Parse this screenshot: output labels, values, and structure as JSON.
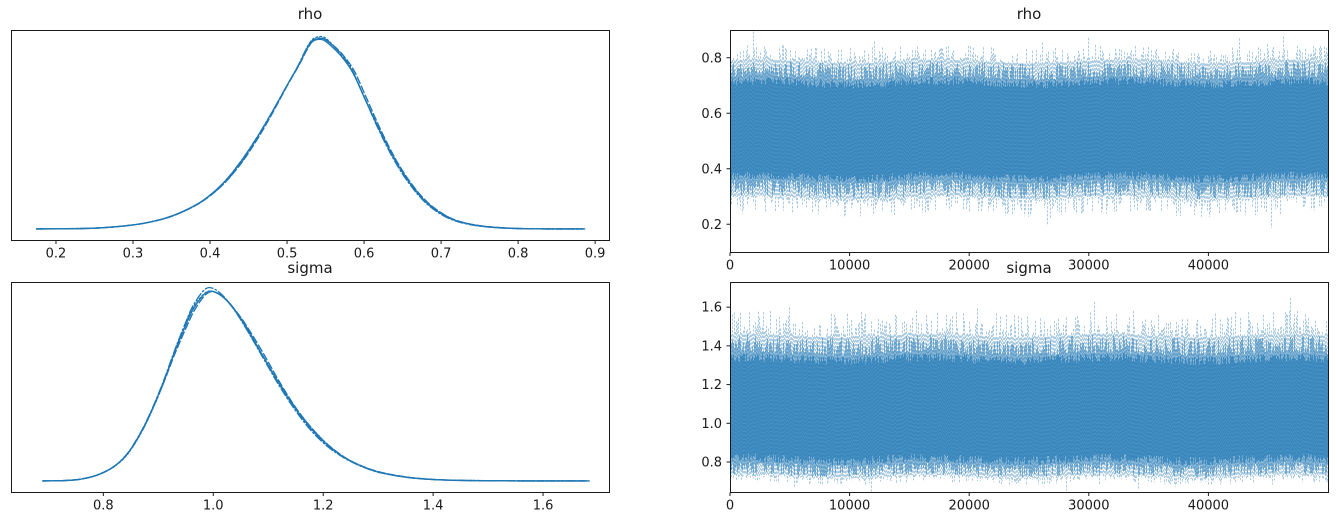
{
  "figure": {
    "kind": "mcmc-trace-plot",
    "background": "#ffffff",
    "accent": "#1f77b4",
    "parameters": [
      "rho",
      "sigma"
    ]
  },
  "chart_data": [
    {
      "id": "rho-kde",
      "type": "line",
      "subtype": "kde",
      "title": "rho",
      "param": "rho",
      "xlabel": "",
      "ylabel": "",
      "xlim": [
        0.1416,
        0.918
      ],
      "xticks": [
        0.2,
        0.3,
        0.4,
        0.5,
        0.6,
        0.7,
        0.8,
        0.9
      ],
      "xtick_format": "1dp",
      "grid": false,
      "legend": "none",
      "n_chains": 4,
      "line_color": "#1f77b4",
      "linestyles": [
        "solid",
        "dashed",
        "dashdot",
        "dotted"
      ],
      "peak_x": 0.533,
      "points": {
        "x": [
          0.175,
          0.21,
          0.25,
          0.29,
          0.32,
          0.35,
          0.38,
          0.4,
          0.42,
          0.44,
          0.46,
          0.48,
          0.5,
          0.515,
          0.525,
          0.533,
          0.545,
          0.555,
          0.57,
          0.585,
          0.6,
          0.62,
          0.64,
          0.66,
          0.68,
          0.7,
          0.72,
          0.745,
          0.77,
          0.8,
          0.84,
          0.885
        ],
        "density": [
          0.008,
          0.009,
          0.012,
          0.024,
          0.042,
          0.075,
          0.13,
          0.185,
          0.26,
          0.36,
          0.48,
          0.615,
          0.76,
          0.865,
          0.945,
          0.99,
          1.0,
          0.975,
          0.915,
          0.83,
          0.7,
          0.525,
          0.37,
          0.245,
          0.15,
          0.088,
          0.05,
          0.027,
          0.016,
          0.01,
          0.008,
          0.008
        ]
      }
    },
    {
      "id": "rho-trace",
      "type": "line",
      "subtype": "trace",
      "title": "rho",
      "param": "rho",
      "xlabel": "",
      "ylabel": "",
      "xlim": [
        0,
        50000
      ],
      "xticks": [
        0,
        10000,
        20000,
        30000,
        40000
      ],
      "xtick_format": "int",
      "ylim": [
        0.1,
        0.9
      ],
      "yticks": [
        0.2,
        0.4,
        0.6,
        0.8
      ],
      "ytick_format": "1dp",
      "grid": false,
      "legend": "none",
      "n_chains": 4,
      "n_samples": 50000,
      "mean": 0.54,
      "band_core": [
        0.355,
        0.725
      ],
      "band_mid": [
        0.295,
        0.785
      ],
      "extremes": [
        0.17,
        0.89
      ],
      "line_color": "#1f77b4",
      "seed": 101
    },
    {
      "id": "sigma-kde",
      "type": "line",
      "subtype": "kde",
      "title": "sigma",
      "param": "sigma",
      "xlabel": "",
      "ylabel": "",
      "xlim": [
        0.632,
        1.72
      ],
      "xticks": [
        0.8,
        1.0,
        1.2,
        1.4,
        1.6
      ],
      "xtick_format": "1dp",
      "grid": false,
      "legend": "none",
      "n_chains": 4,
      "line_color": "#1f77b4",
      "linestyles": [
        "solid",
        "dashed",
        "dashdot",
        "dotted"
      ],
      "peak_x": 0.985,
      "points": {
        "x": [
          0.69,
          0.73,
          0.76,
          0.79,
          0.82,
          0.845,
          0.87,
          0.89,
          0.91,
          0.93,
          0.95,
          0.965,
          0.985,
          1.0,
          1.02,
          1.04,
          1.06,
          1.09,
          1.12,
          1.15,
          1.18,
          1.21,
          1.24,
          1.27,
          1.3,
          1.34,
          1.38,
          1.43,
          1.5,
          1.58,
          1.68
        ],
        "density": [
          0.008,
          0.01,
          0.018,
          0.04,
          0.085,
          0.155,
          0.27,
          0.39,
          0.53,
          0.685,
          0.825,
          0.915,
          0.99,
          1.0,
          0.965,
          0.9,
          0.815,
          0.665,
          0.515,
          0.385,
          0.275,
          0.19,
          0.128,
          0.085,
          0.055,
          0.032,
          0.019,
          0.012,
          0.009,
          0.008,
          0.008
        ]
      }
    },
    {
      "id": "sigma-trace",
      "type": "line",
      "subtype": "trace",
      "title": "sigma",
      "param": "sigma",
      "xlabel": "",
      "ylabel": "",
      "xlim": [
        0,
        50000
      ],
      "xticks": [
        0,
        10000,
        20000,
        30000,
        40000
      ],
      "xtick_format": "int",
      "ylim": [
        0.645,
        1.73
      ],
      "yticks": [
        0.8,
        1.0,
        1.2,
        1.4,
        1.6
      ],
      "ytick_format": "1dp",
      "grid": false,
      "legend": "none",
      "n_chains": 4,
      "n_samples": 50000,
      "mean": 1.07,
      "band_core": [
        0.79,
        1.355
      ],
      "band_mid": [
        0.725,
        1.45
      ],
      "extremes": [
        0.65,
        1.68
      ],
      "line_color": "#1f77b4",
      "seed": 202
    }
  ]
}
